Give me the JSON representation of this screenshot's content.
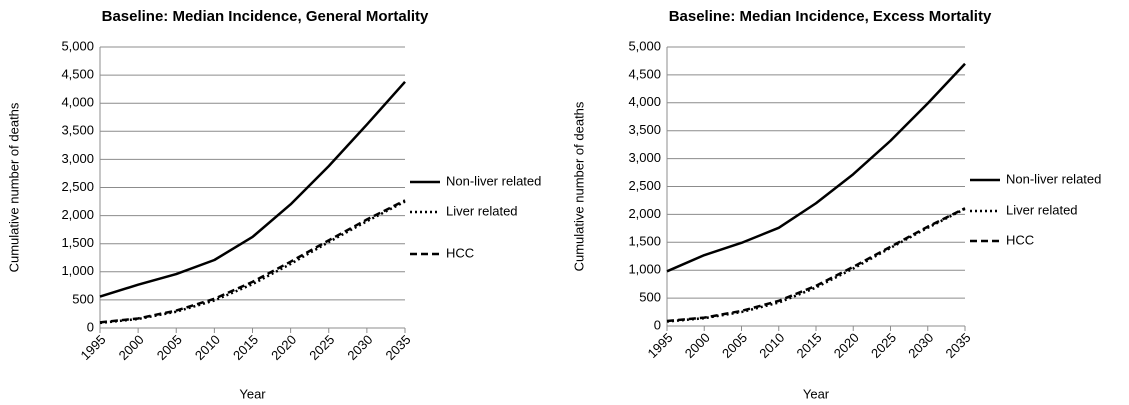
{
  "chart_data": [
    {
      "type": "line",
      "title": "Baseline: Median Incidence, General Mortality",
      "x_label": "Year",
      "y_label": "Cumulative number of deaths",
      "x": [
        1995,
        2000,
        2005,
        2010,
        2015,
        2020,
        2025,
        2030,
        2035
      ],
      "xlim": [
        1995,
        2035
      ],
      "xticks": [
        1995,
        2000,
        2005,
        2010,
        2015,
        2020,
        2025,
        2030,
        2035
      ],
      "ylim": [
        0,
        5000
      ],
      "yticks": [
        0,
        500,
        {
          "value": 1000,
          "label": "1,000"
        },
        {
          "value": 1500,
          "label": "1,500"
        },
        {
          "value": 2000,
          "label": "2,000"
        },
        {
          "value": 2500,
          "label": "2,500"
        },
        {
          "value": 3000,
          "label": "3,000"
        },
        {
          "value": 3500,
          "label": "3,500"
        },
        {
          "value": 4000,
          "label": "4,000"
        },
        {
          "value": 4500,
          "label": "4,500"
        },
        {
          "value": 5000,
          "label": "5,000"
        }
      ],
      "grid": true,
      "legend": "right",
      "series": [
        {
          "name": "Non-liver related",
          "color": "#000000",
          "style": "solid",
          "values": [
            560,
            770,
            960,
            1210,
            1620,
            2200,
            2880,
            3620,
            4380
          ]
        },
        {
          "name": "Liver related",
          "color": "#000000",
          "style": "dotted",
          "values": [
            90,
            160,
            290,
            490,
            780,
            1140,
            1530,
            1900,
            2250
          ]
        },
        {
          "name": "HCC",
          "color": "#000000",
          "style": "dashed",
          "values": [
            100,
            170,
            310,
            520,
            820,
            1180,
            1560,
            1930,
            2270
          ]
        }
      ]
    },
    {
      "type": "line",
      "title": "Baseline: Median Incidence, Excess Mortality",
      "x_label": "Year",
      "y_label": "Cumulative number of deaths",
      "x": [
        1995,
        2000,
        2005,
        2010,
        2015,
        2020,
        2025,
        2030,
        2035
      ],
      "xlim": [
        1995,
        2035
      ],
      "xticks": [
        1995,
        2000,
        2005,
        2010,
        2015,
        2020,
        2025,
        2030,
        2035
      ],
      "ylim": [
        0,
        5000
      ],
      "yticks": [
        0,
        500,
        {
          "value": 1000,
          "label": "1,000"
        },
        {
          "value": 1500,
          "label": "1,500"
        },
        {
          "value": 2000,
          "label": "2,000"
        },
        {
          "value": 2500,
          "label": "2,500"
        },
        {
          "value": 3000,
          "label": "3,000"
        },
        {
          "value": 3500,
          "label": "3,500"
        },
        {
          "value": 4000,
          "label": "4,000"
        },
        {
          "value": 4500,
          "label": "4,500"
        },
        {
          "value": 5000,
          "label": "5,000"
        }
      ],
      "grid": true,
      "legend": "right",
      "series": [
        {
          "name": "Non-liver related",
          "color": "#000000",
          "style": "solid",
          "values": [
            980,
            1270,
            1490,
            1760,
            2200,
            2720,
            3320,
            3990,
            4700
          ]
        },
        {
          "name": "Liver related",
          "color": "#000000",
          "style": "dotted",
          "values": [
            80,
            140,
            250,
            420,
            690,
            1030,
            1400,
            1760,
            2100
          ]
        },
        {
          "name": "HCC",
          "color": "#000000",
          "style": "dashed",
          "values": [
            90,
            150,
            270,
            450,
            720,
            1060,
            1420,
            1780,
            2110
          ]
        }
      ]
    }
  ]
}
